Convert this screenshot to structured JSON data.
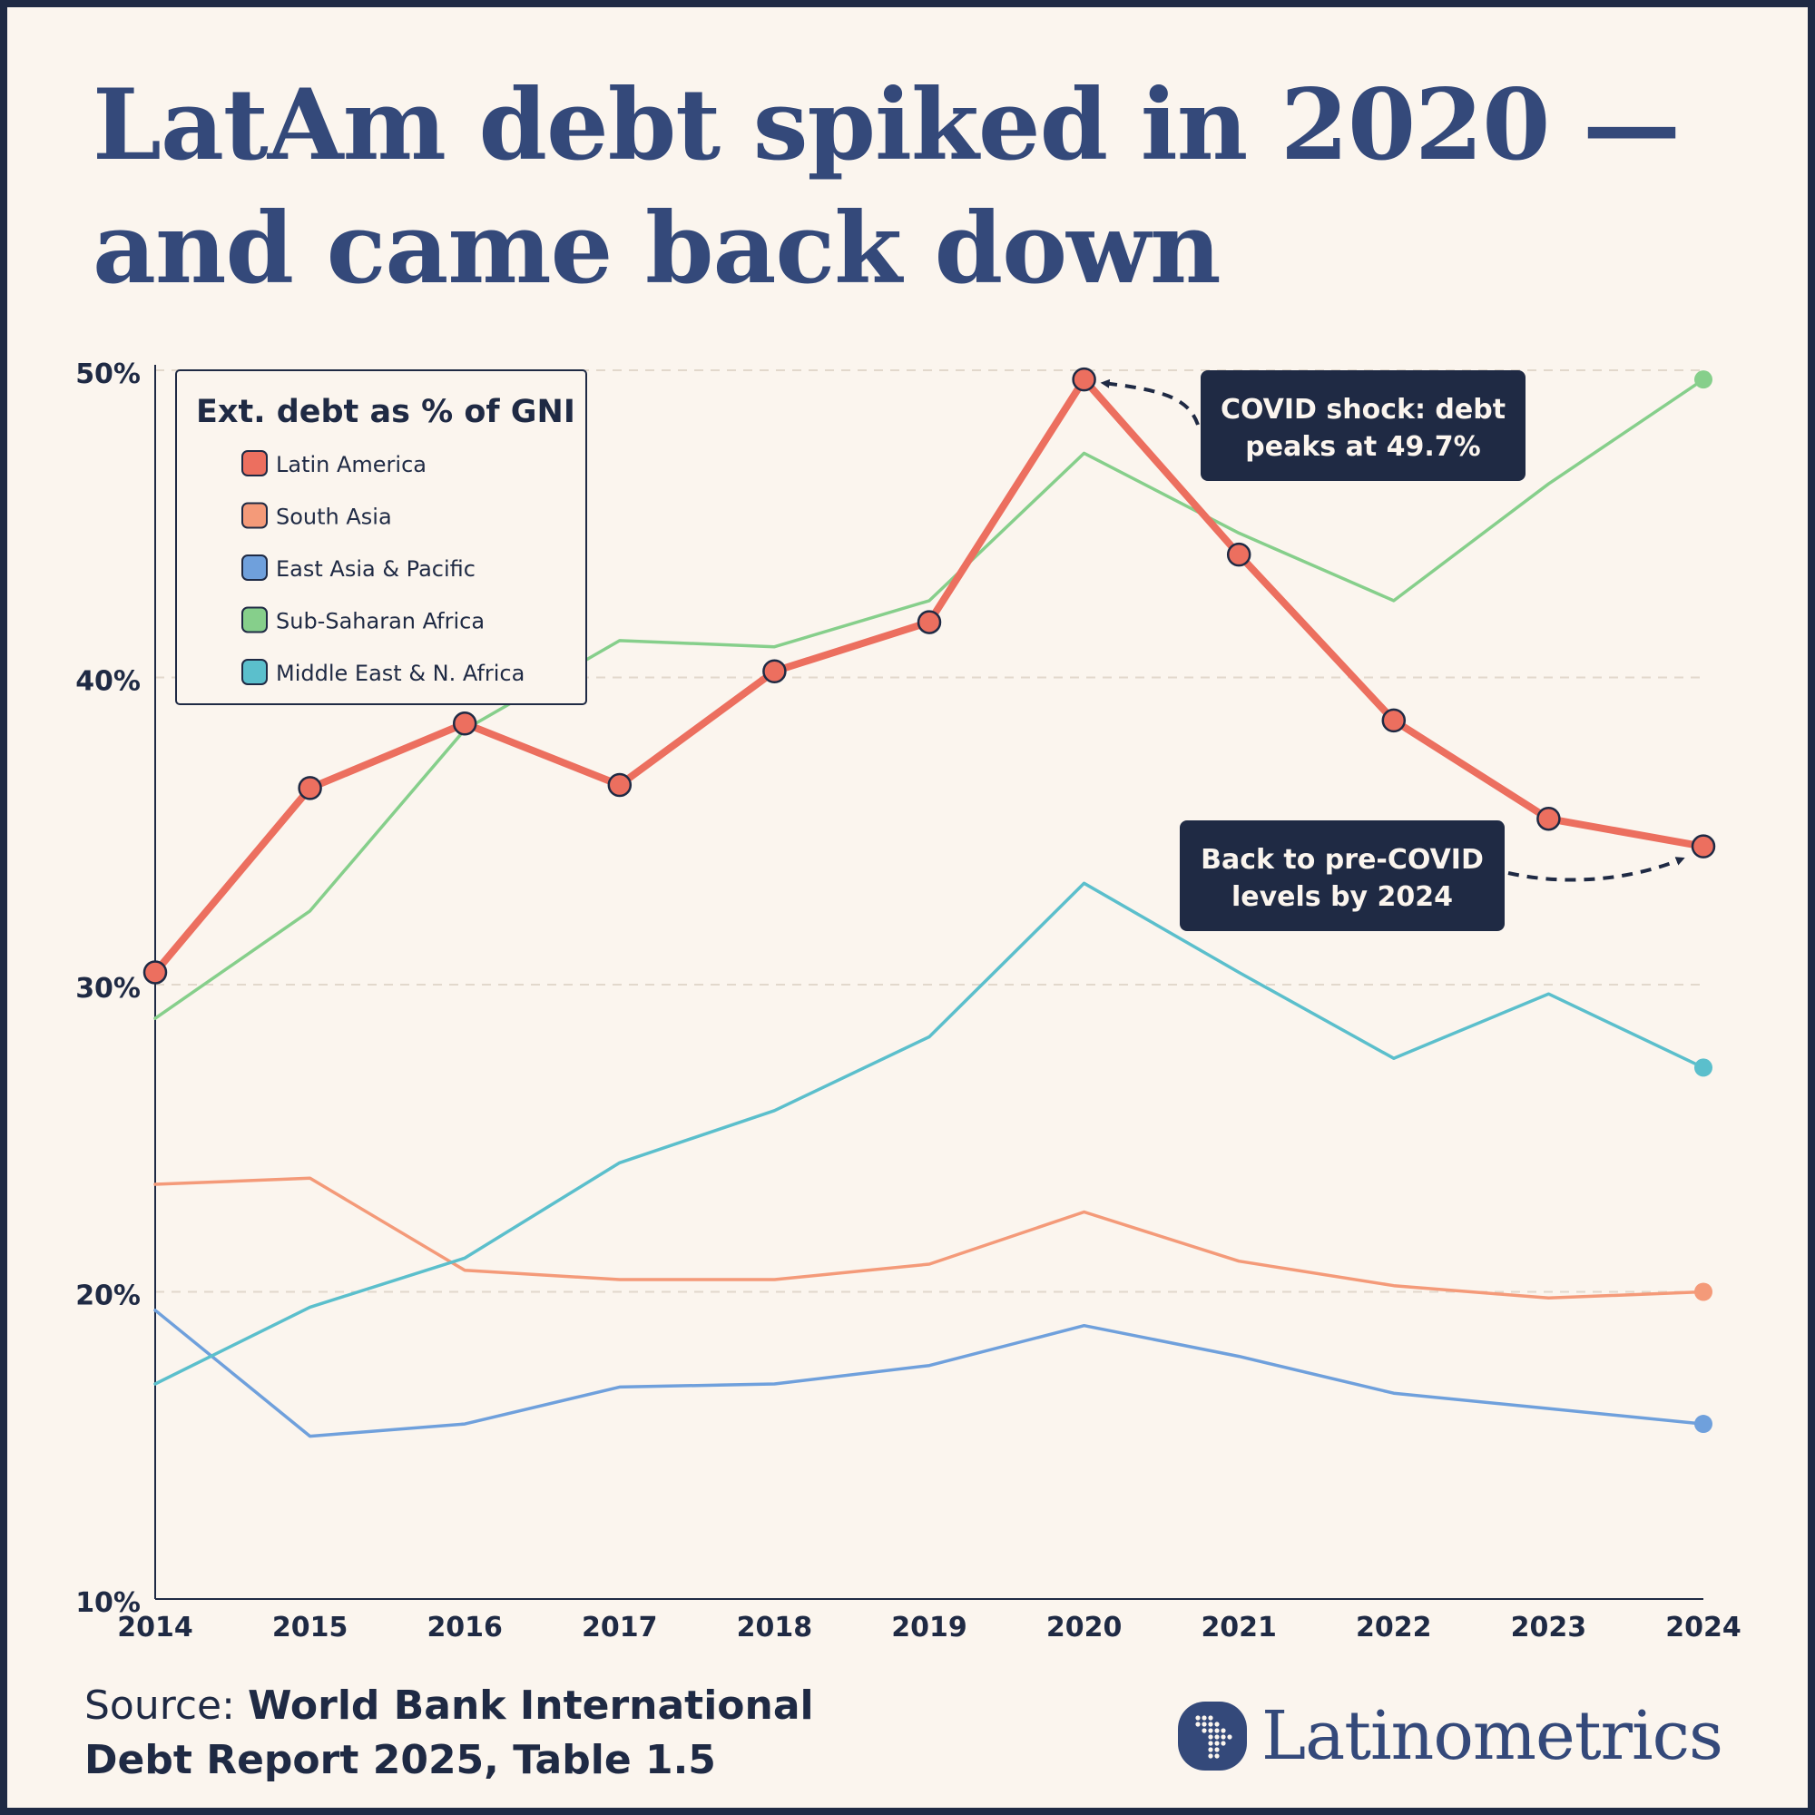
{
  "header": {
    "title_line1": "LatAm debt spiked in 2020 —",
    "title_line2": "and came back down"
  },
  "footer": {
    "source_label": "Source:",
    "source_text_line1": "World Bank International",
    "source_text_line2": "Debt Report 2025, Table 1.5",
    "brand": "Latinometrics"
  },
  "colors": {
    "background": "#fbf5ee",
    "frame": "#1f2a44",
    "title": "#34497a",
    "annotation_bg": "#1f2a44"
  },
  "chart_data": {
    "type": "line",
    "legend_title": "Ext. debt as % of GNI",
    "legend_position": "top-left",
    "x": [
      "2014",
      "2015",
      "2016",
      "2017",
      "2018",
      "2019",
      "2020",
      "2021",
      "2022",
      "2023",
      "2024"
    ],
    "ylim": [
      10,
      50
    ],
    "yticks": [
      "10%",
      "20%",
      "30%",
      "40%",
      "50%"
    ],
    "ytick_values": [
      10,
      20,
      30,
      40,
      50
    ],
    "grid": "horizontal dashed",
    "series": [
      {
        "name": "Latin America",
        "color": "#ec6f5f",
        "highlight": true,
        "values": [
          30.4,
          36.4,
          38.5,
          36.5,
          40.2,
          41.8,
          49.7,
          44.0,
          38.6,
          35.4,
          34.5
        ]
      },
      {
        "name": "South Asia",
        "color": "#f49a79",
        "highlight": false,
        "values": [
          23.5,
          23.7,
          20.7,
          20.4,
          20.4,
          20.9,
          22.6,
          21.0,
          20.2,
          19.8,
          20.0
        ]
      },
      {
        "name": "East Asia & Pacific",
        "color": "#6fa0dc",
        "highlight": false,
        "values": [
          19.4,
          15.3,
          15.7,
          16.9,
          17.0,
          17.6,
          18.9,
          17.9,
          16.7,
          16.2,
          15.7
        ]
      },
      {
        "name": "Sub-Saharan Africa",
        "color": "#86cf8b",
        "highlight": false,
        "values": [
          28.9,
          32.4,
          38.3,
          41.2,
          41.0,
          42.5,
          47.3,
          44.7,
          42.5,
          46.3,
          49.7
        ]
      },
      {
        "name": "Middle East & N. Africa",
        "color": "#5bbfcc",
        "highlight": false,
        "values": [
          17.0,
          19.5,
          21.1,
          24.2,
          25.9,
          28.3,
          33.3,
          30.4,
          27.6,
          29.7,
          27.3
        ]
      }
    ],
    "annotations": [
      {
        "text_line1": "COVID shock: debt",
        "text_line2": "peaks at 49.7%",
        "series": "Latin America",
        "x": "2020",
        "y": 49.7
      },
      {
        "text_line1": "Back to pre-COVID",
        "text_line2": "levels by 2024",
        "series": "Latin America",
        "x": "2024",
        "y": 34.5
      }
    ]
  }
}
